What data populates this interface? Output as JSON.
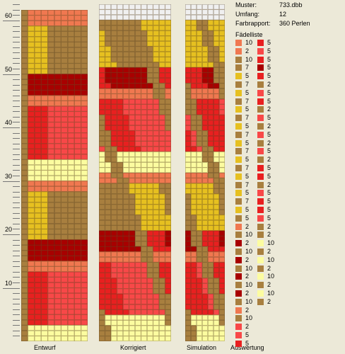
{
  "ruler": {
    "labels": [
      "60",
      "50",
      "40",
      "30",
      "20",
      "10"
    ],
    "values": [
      60,
      50,
      40,
      30,
      20,
      10
    ]
  },
  "panels": {
    "entwurf_label": "Entwurf",
    "korrigiert_label": "Korrigiert",
    "simulation_label": "Simulation",
    "auswertung_label": "Auswertung"
  },
  "info": {
    "muster_label": "Muster:",
    "muster_value": "733.dbb",
    "umfang_label": "Umfang:",
    "umfang_value": "12",
    "farbrapport_label": "Farbrapport:",
    "farbrapport_value": "360 Perlen"
  },
  "faedelliste_title": "Fädelliste",
  "colors": {
    "tan": "#a87f3f",
    "yellow": "#e6c020",
    "orange": "#f07850",
    "darkred": "#a80000",
    "red": "#e82020",
    "lightred": "#f84848",
    "cream": "#fcfca0",
    "white": "#f0f0f0"
  },
  "faedelliste_left": [
    {
      "c": "orange",
      "n": "10"
    },
    {
      "c": "orange",
      "n": "2"
    },
    {
      "c": "tan",
      "n": "10"
    },
    {
      "c": "tan",
      "n": "7"
    },
    {
      "c": "yellow",
      "n": "5"
    },
    {
      "c": "tan",
      "n": "7"
    },
    {
      "c": "yellow",
      "n": "5"
    },
    {
      "c": "tan",
      "n": "7"
    },
    {
      "c": "yellow",
      "n": "5"
    },
    {
      "c": "tan",
      "n": "7"
    },
    {
      "c": "yellow",
      "n": "5"
    },
    {
      "c": "tan",
      "n": "7"
    },
    {
      "c": "yellow",
      "n": "5"
    },
    {
      "c": "tan",
      "n": "7"
    },
    {
      "c": "yellow",
      "n": "5"
    },
    {
      "c": "tan",
      "n": "7"
    },
    {
      "c": "yellow",
      "n": "5"
    },
    {
      "c": "tan",
      "n": "7"
    },
    {
      "c": "yellow",
      "n": "5"
    },
    {
      "c": "tan",
      "n": "7"
    },
    {
      "c": "yellow",
      "n": "5"
    },
    {
      "c": "tan",
      "n": "5"
    },
    {
      "c": "orange",
      "n": "2"
    },
    {
      "c": "tan",
      "n": "10"
    },
    {
      "c": "darkred",
      "n": "2"
    },
    {
      "c": "tan",
      "n": "10"
    },
    {
      "c": "darkred",
      "n": "2"
    },
    {
      "c": "tan",
      "n": "10"
    },
    {
      "c": "darkred",
      "n": "2"
    },
    {
      "c": "tan",
      "n": "10"
    },
    {
      "c": "darkred",
      "n": "2"
    },
    {
      "c": "tan",
      "n": "10"
    },
    {
      "c": "orange",
      "n": "2"
    },
    {
      "c": "tan",
      "n": "10"
    },
    {
      "c": "lightred",
      "n": "2"
    },
    {
      "c": "lightred",
      "n": "5"
    },
    {
      "c": "red",
      "n": "5"
    }
  ],
  "faedelliste_right": [
    {
      "c": "red",
      "n": "5"
    },
    {
      "c": "lightred",
      "n": "5"
    },
    {
      "c": "red",
      "n": "5"
    },
    {
      "c": "darkred",
      "n": "5"
    },
    {
      "c": "red",
      "n": "5"
    },
    {
      "c": "tan",
      "n": "2"
    },
    {
      "c": "lightred",
      "n": "5"
    },
    {
      "c": "red",
      "n": "5"
    },
    {
      "c": "tan",
      "n": "2"
    },
    {
      "c": "lightred",
      "n": "5"
    },
    {
      "c": "tan",
      "n": "2"
    },
    {
      "c": "lightred",
      "n": "5"
    },
    {
      "c": "tan",
      "n": "2"
    },
    {
      "c": "lightred",
      "n": "5"
    },
    {
      "c": "tan",
      "n": "2"
    },
    {
      "c": "red",
      "n": "5"
    },
    {
      "c": "red",
      "n": "5"
    },
    {
      "c": "tan",
      "n": "2"
    },
    {
      "c": "lightred",
      "n": "5"
    },
    {
      "c": "red",
      "n": "5"
    },
    {
      "c": "red",
      "n": "5"
    },
    {
      "c": "lightred",
      "n": "5"
    },
    {
      "c": "tan",
      "n": "2"
    },
    {
      "c": "tan",
      "n": "2"
    },
    {
      "c": "cream",
      "n": "10"
    },
    {
      "c": "tan",
      "n": "2"
    },
    {
      "c": "cream",
      "n": "10"
    },
    {
      "c": "tan",
      "n": "2"
    },
    {
      "c": "cream",
      "n": "10"
    },
    {
      "c": "tan",
      "n": "2"
    },
    {
      "c": "cream",
      "n": "10"
    },
    {
      "c": "tan",
      "n": "2"
    }
  ]
}
